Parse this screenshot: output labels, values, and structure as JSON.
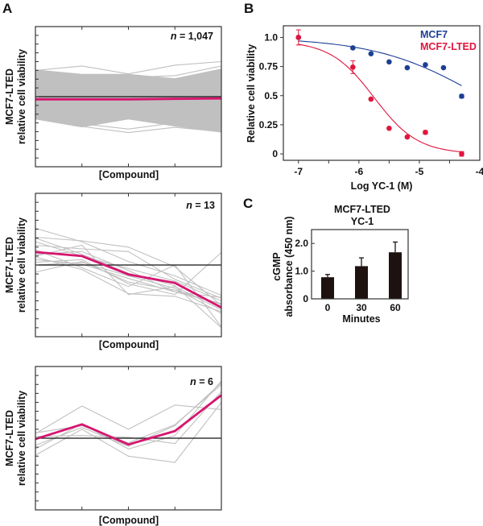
{
  "chart_data": [
    {
      "panel": "A",
      "type": "line",
      "n_label": "n = 1,047",
      "n_prefix": "n",
      "n_value": "= 1,047",
      "ylabel_line1": "MCF7-LTED",
      "ylabel_line2": "relative cell viability",
      "xlabel": "[Compound]",
      "grid": false,
      "ylim": [
        -8,
        8
      ],
      "x": [
        1,
        2,
        3,
        4,
        5
      ],
      "baseline": 0,
      "mean": [
        -0.3,
        -0.3,
        -0.3,
        -0.25,
        -0.2
      ],
      "band_upper": [
        3.1,
        2.6,
        2.6,
        2.1,
        3.2
      ],
      "band_lower": [
        -2.6,
        -3.5,
        -2.6,
        -3.4,
        -4.1
      ],
      "traces": [
        [
          3.0,
          3.5,
          2.6,
          3.6,
          4.0
        ],
        [
          -2.4,
          -3.4,
          -4.1,
          -3.5,
          -4.0
        ],
        [
          2.6,
          2.0,
          2.2,
          2.4,
          3.5
        ],
        [
          -2.2,
          -3.1,
          -3.7,
          -3.0,
          -3.9
        ]
      ],
      "mean_color": "#d6156f",
      "trace_color": "#c0c0c0"
    },
    {
      "panel": "A",
      "type": "line",
      "n_prefix": "n",
      "n_value": "= 13",
      "ylabel_line1": "MCF7-LTED",
      "ylabel_line2": "relative cell viability",
      "xlabel": "[Compound]",
      "grid": false,
      "ylim": [
        -8,
        8
      ],
      "x": [
        1,
        2,
        3,
        4,
        5
      ],
      "baseline": 0,
      "mean": [
        1.45,
        1.0,
        -1.05,
        -2.0,
        -4.75
      ],
      "traces": [
        [
          4.1,
          2.6,
          0.4,
          -1.2,
          -3.4
        ],
        [
          3.1,
          2.7,
          2.0,
          -0.2,
          -4.5
        ],
        [
          3.0,
          1.2,
          -0.9,
          -2.3,
          -7.0
        ],
        [
          2.2,
          1.8,
          1.5,
          -1.6,
          -3.7
        ],
        [
          1.0,
          2.2,
          -3.3,
          -2.4,
          -5.0
        ],
        [
          0.6,
          0.1,
          -1.5,
          -3.0,
          -4.3
        ],
        [
          1.7,
          -0.3,
          -2.4,
          0.0,
          -6.9
        ],
        [
          0.3,
          0.6,
          -2.1,
          -3.3,
          1.4
        ],
        [
          -0.8,
          0.4,
          -1.9,
          -2.8,
          -4.4
        ],
        [
          0.9,
          -0.5,
          -3.2,
          -3.5,
          -5.2
        ],
        [
          2.6,
          1.0,
          -0.4,
          -1.8,
          -4.0
        ],
        [
          0.0,
          0.3,
          -1.2,
          -2.6,
          -5.4
        ],
        [
          1.2,
          1.5,
          -0.6,
          -3.0,
          -3.6
        ]
      ],
      "mean_color": "#d6156f",
      "trace_color": "#c0c0c0"
    },
    {
      "panel": "A",
      "type": "line",
      "n_prefix": "n",
      "n_value": "= 6",
      "ylabel_line1": "MCF7-LTED",
      "ylabel_line2": "relative cell viability",
      "xlabel": "[Compound]",
      "grid": false,
      "ylim": [
        -8,
        8
      ],
      "x": [
        1,
        2,
        3,
        4,
        5
      ],
      "baseline": 0,
      "mean": [
        -0.1,
        1.55,
        -0.7,
        0.8,
        4.8
      ],
      "traces": [
        [
          0.5,
          3.6,
          1.0,
          3.7,
          3.2
        ],
        [
          -1.9,
          1.0,
          -2.0,
          -2.7,
          4.0
        ],
        [
          -1.2,
          1.6,
          -1.2,
          0.3,
          6.4
        ],
        [
          0.6,
          1.4,
          -0.5,
          1.5,
          6.0
        ],
        [
          0.2,
          0.3,
          0.1,
          -0.6,
          5.2
        ],
        [
          -0.8,
          1.2,
          -0.9,
          1.4,
          6.2
        ]
      ],
      "mean_color": "#d6156f",
      "trace_color": "#c0c0c0"
    },
    {
      "panel": "B",
      "type": "scatter",
      "xlabel": "Log YC-1 (M)",
      "ylabel": "Relative cell viability",
      "xlim": [
        -7.25,
        -4
      ],
      "ylim": [
        -0.055,
        1.1
      ],
      "xticks": [
        -7,
        -6,
        -5,
        -4
      ],
      "xtick_labels": [
        "-7",
        "-6",
        "-5",
        "-4"
      ],
      "yticks": [
        0,
        0.25,
        0.5,
        0.75,
        1.0
      ],
      "ytick_labels": [
        "0",
        "0.25",
        "0.5",
        "0.75",
        "1.0"
      ],
      "legend_position": "top-right",
      "grid": false,
      "series": [
        {
          "name": "MCF7",
          "color": "#1c3f94",
          "x": [
            -7,
            -6.1,
            -5.8,
            -5.5,
            -5.2,
            -4.9,
            -4.6,
            -4.3
          ],
          "y": [
            1.0,
            0.91,
            0.86,
            0.79,
            0.74,
            0.765,
            0.74,
            0.495
          ],
          "err": [
            0,
            0,
            0,
            0,
            0,
            0,
            0,
            0.015
          ]
        },
        {
          "name": "MCF7-LTED",
          "color": "#e0153d",
          "x": [
            -7,
            -6.1,
            -5.8,
            -5.5,
            -5.2,
            -4.9,
            -4.3
          ],
          "y": [
            1.0,
            0.745,
            0.47,
            0.22,
            0.145,
            0.185,
            0.0
          ],
          "err": [
            0.065,
            0.055,
            0,
            0,
            0,
            0.015,
            0.02
          ]
        }
      ]
    },
    {
      "panel": "C",
      "type": "bar",
      "title_line1": "MCF7-LTED",
      "title_line2": "YC-1",
      "xlabel": "Minutes",
      "ylabel_line1": "cGMP",
      "ylabel_line2": "absorbance (450 nm)",
      "categories": [
        "0",
        "30",
        "60"
      ],
      "values": [
        0.78,
        1.18,
        1.68
      ],
      "err": [
        0.1,
        0.3,
        0.37
      ],
      "ylim": [
        0,
        2.5
      ],
      "yticks": [
        0,
        1.0,
        2.0
      ],
      "ytick_labels": [
        "0",
        "1.0",
        "2.0"
      ],
      "bar_color": "#1e1210",
      "grid": false
    }
  ],
  "panel_labels": {
    "a": "A",
    "b": "B",
    "c": "C"
  }
}
